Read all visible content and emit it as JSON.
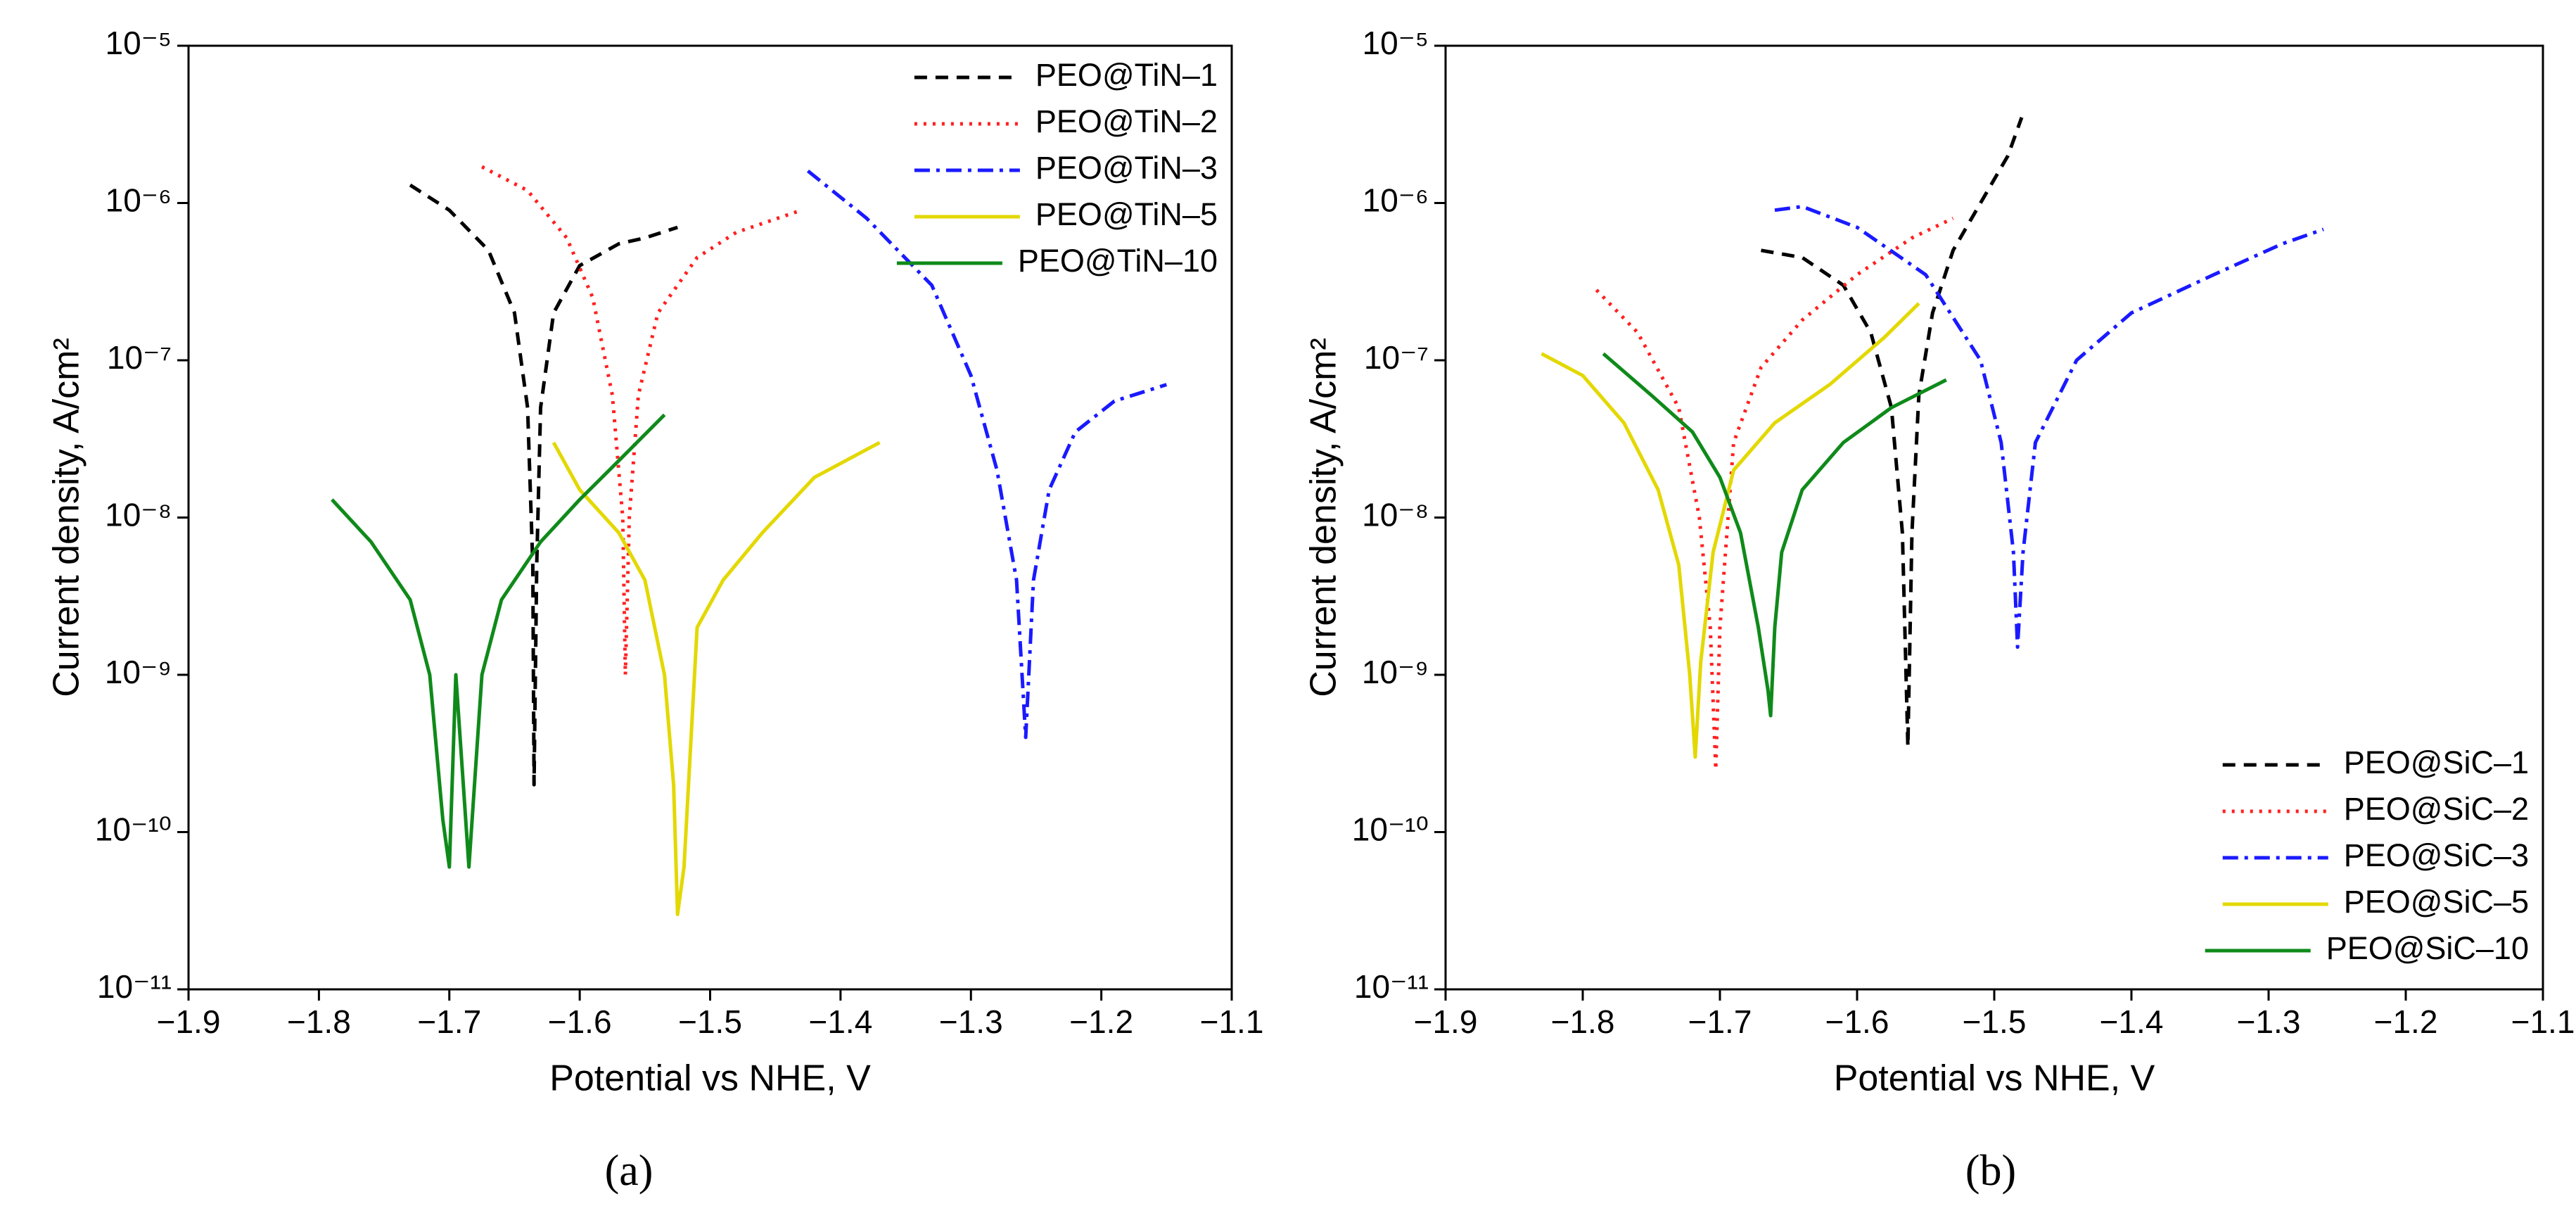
{
  "chart_data": [
    {
      "type": "line",
      "caption": "(a)",
      "xlabel": "Potential vs NHE, V",
      "ylabel": "Current density, A/cm²",
      "yscale": "log",
      "legend": "upper right",
      "xlim": [
        -1.9,
        -1.1
      ],
      "xticks": [
        {
          "value": -1.9,
          "label": "−1.9"
        },
        {
          "value": -1.8,
          "label": "−1.8"
        },
        {
          "value": -1.7,
          "label": "−1.7"
        },
        {
          "value": -1.6,
          "label": "−1.6"
        },
        {
          "value": -1.5,
          "label": "−1.5"
        },
        {
          "value": -1.4,
          "label": "−1.4"
        },
        {
          "value": -1.3,
          "label": "−1.3"
        },
        {
          "value": -1.2,
          "label": "−1.2"
        },
        {
          "value": -1.1,
          "label": "−1.1"
        }
      ],
      "ylim": [
        1e-11,
        1e-05
      ],
      "yticks": [
        {
          "value": 1e-11,
          "label": "10⁻¹¹"
        },
        {
          "value": 1e-10,
          "label": "10⁻¹⁰"
        },
        {
          "value": 1e-09,
          "label": "10⁻⁹"
        },
        {
          "value": 1e-08,
          "label": "10⁻⁸"
        },
        {
          "value": 1e-07,
          "label": "10⁻⁷"
        },
        {
          "value": 1e-06,
          "label": "10⁻⁶"
        },
        {
          "value": 1e-05,
          "label": "10⁻⁵"
        }
      ],
      "series": [
        {
          "name": "PEO@TiN–1",
          "color": "#000000",
          "style": "dashed",
          "x": [
            -1.73,
            -1.7,
            -1.67,
            -1.65,
            -1.64,
            -1.636,
            -1.635,
            -1.633,
            -1.63,
            -1.62,
            -1.6,
            -1.57,
            -1.55,
            -1.525
          ],
          "values": [
            1.3e-06,
            9e-07,
            5e-07,
            2e-07,
            5e-08,
            5e-09,
            2e-10,
            5e-09,
            5e-08,
            2e-07,
            4e-07,
            5.5e-07,
            6e-07,
            7e-07
          ]
        },
        {
          "name": "PEO@TiN–2",
          "color": "#ff2020",
          "style": "dotted",
          "x": [
            -1.675,
            -1.64,
            -1.61,
            -1.59,
            -1.575,
            -1.567,
            -1.565,
            -1.562,
            -1.555,
            -1.54,
            -1.51,
            -1.48,
            -1.43
          ],
          "values": [
            1.7e-06,
            1.2e-06,
            6e-07,
            2.5e-07,
            6e-08,
            1e-08,
            1e-09,
            1e-08,
            6e-08,
            2e-07,
            4.5e-07,
            6.5e-07,
            9e-07
          ]
        },
        {
          "name": "PEO@TiN–3",
          "color": "#1a1aff",
          "style": "dashdot",
          "x": [
            -1.425,
            -1.38,
            -1.33,
            -1.3,
            -1.28,
            -1.265,
            -1.258,
            -1.252,
            -1.24,
            -1.22,
            -1.19,
            -1.15
          ],
          "values": [
            1.6e-06,
            8e-07,
            3e-07,
            8e-08,
            2e-08,
            4e-09,
            4e-10,
            4e-09,
            1.5e-08,
            3.5e-08,
            5.5e-08,
            7e-08
          ]
        },
        {
          "name": "PEO@TiN–5",
          "color": "#e3d800",
          "style": "solid",
          "x": [
            -1.62,
            -1.6,
            -1.57,
            -1.55,
            -1.535,
            -1.528,
            -1.525,
            -1.52,
            -1.51,
            -1.49,
            -1.46,
            -1.42,
            -1.37
          ],
          "values": [
            3e-08,
            1.5e-08,
            8e-09,
            4e-09,
            1e-09,
            2e-10,
            3e-11,
            6e-11,
            2e-09,
            4e-09,
            8e-09,
            1.8e-08,
            3e-08
          ]
        },
        {
          "name": "PEO@TiN–10",
          "color": "#0f8a1a",
          "style": "solid",
          "x": [
            -1.79,
            -1.76,
            -1.73,
            -1.715,
            -1.705,
            -1.7,
            -1.695,
            -1.685,
            -1.675,
            -1.66,
            -1.63,
            -1.6,
            -1.57,
            -1.535
          ],
          "values": [
            1.3e-08,
            7e-09,
            3e-09,
            1e-09,
            1.2e-10,
            6e-11,
            1e-09,
            6e-11,
            1e-09,
            3e-09,
            7e-09,
            1.3e-08,
            2.3e-08,
            4.5e-08
          ]
        }
      ]
    },
    {
      "type": "line",
      "caption": "(b)",
      "xlabel": "Potential vs NHE, V",
      "ylabel": "Current density, A/cm²",
      "yscale": "log",
      "legend": "lower right",
      "xlim": [
        -1.9,
        -1.1
      ],
      "xticks": [
        {
          "value": -1.9,
          "label": "−1.9"
        },
        {
          "value": -1.8,
          "label": "−1.8"
        },
        {
          "value": -1.7,
          "label": "−1.7"
        },
        {
          "value": -1.6,
          "label": "−1.6"
        },
        {
          "value": -1.5,
          "label": "−1.5"
        },
        {
          "value": -1.4,
          "label": "−1.4"
        },
        {
          "value": -1.3,
          "label": "−1.3"
        },
        {
          "value": -1.2,
          "label": "−1.2"
        },
        {
          "value": -1.1,
          "label": "−1.1"
        }
      ],
      "ylim": [
        1e-11,
        1e-05
      ],
      "yticks": [
        {
          "value": 1e-11,
          "label": "10⁻¹¹"
        },
        {
          "value": 1e-10,
          "label": "10⁻¹⁰"
        },
        {
          "value": 1e-09,
          "label": "10⁻⁹"
        },
        {
          "value": 1e-08,
          "label": "10⁻⁸"
        },
        {
          "value": 1e-07,
          "label": "10⁻⁷"
        },
        {
          "value": 1e-06,
          "label": "10⁻⁶"
        },
        {
          "value": 1e-05,
          "label": "10⁻⁵"
        }
      ],
      "series": [
        {
          "name": "PEO@SiC–1",
          "color": "#000000",
          "style": "dashed",
          "x": [
            -1.67,
            -1.64,
            -1.61,
            -1.59,
            -1.575,
            -1.567,
            -1.563,
            -1.56,
            -1.555,
            -1.545,
            -1.53,
            -1.51,
            -1.49,
            -1.48
          ],
          "values": [
            5e-07,
            4.5e-07,
            3e-07,
            1.5e-07,
            5e-08,
            8e-09,
            3.5e-10,
            8e-09,
            6e-08,
            2e-07,
            5e-07,
            1e-06,
            2e-06,
            3.5e-06
          ]
        },
        {
          "name": "PEO@SiC–2",
          "color": "#ff2020",
          "style": "dotted",
          "x": [
            -1.79,
            -1.76,
            -1.73,
            -1.715,
            -1.707,
            -1.703,
            -1.7,
            -1.69,
            -1.67,
            -1.64,
            -1.6,
            -1.56,
            -1.53
          ],
          "values": [
            2.8e-07,
            1.5e-07,
            5e-08,
            1e-08,
            2e-09,
            2.5e-10,
            2e-09,
            3e-08,
            9e-08,
            1.8e-07,
            3.5e-07,
            6e-07,
            8e-07
          ]
        },
        {
          "name": "PEO@SiC–3",
          "color": "#1a1aff",
          "style": "dashdot",
          "x": [
            -1.66,
            -1.64,
            -1.6,
            -1.55,
            -1.51,
            -1.495,
            -1.486,
            -1.483,
            -1.479,
            -1.47,
            -1.44,
            -1.4,
            -1.34,
            -1.29,
            -1.26
          ],
          "values": [
            9e-07,
            9.5e-07,
            7e-07,
            3.5e-07,
            1e-07,
            3e-08,
            6e-09,
            1.5e-09,
            6e-09,
            3e-08,
            1e-07,
            2e-07,
            3.5e-07,
            5.5e-07,
            6.8e-07
          ]
        },
        {
          "name": "PEO@SiC–5",
          "color": "#e3d800",
          "style": "solid",
          "x": [
            -1.83,
            -1.8,
            -1.77,
            -1.745,
            -1.73,
            -1.722,
            -1.718,
            -1.714,
            -1.705,
            -1.69,
            -1.66,
            -1.62,
            -1.58,
            -1.555
          ],
          "values": [
            1.1e-07,
            8e-08,
            4e-08,
            1.5e-08,
            5e-09,
            1e-09,
            3e-10,
            1.2e-09,
            6e-09,
            2e-08,
            4e-08,
            7e-08,
            1.4e-07,
            2.3e-07
          ]
        },
        {
          "name": "PEO@SiC–10",
          "color": "#0f8a1a",
          "style": "solid",
          "x": [
            -1.785,
            -1.75,
            -1.72,
            -1.7,
            -1.685,
            -1.672,
            -1.665,
            -1.663,
            -1.66,
            -1.655,
            -1.64,
            -1.61,
            -1.575,
            -1.535
          ],
          "values": [
            1.1e-07,
            6e-08,
            3.5e-08,
            1.8e-08,
            8e-09,
            2e-09,
            8e-10,
            5.5e-10,
            2e-09,
            6e-09,
            1.5e-08,
            3e-08,
            5e-08,
            7.5e-08
          ]
        }
      ]
    }
  ]
}
